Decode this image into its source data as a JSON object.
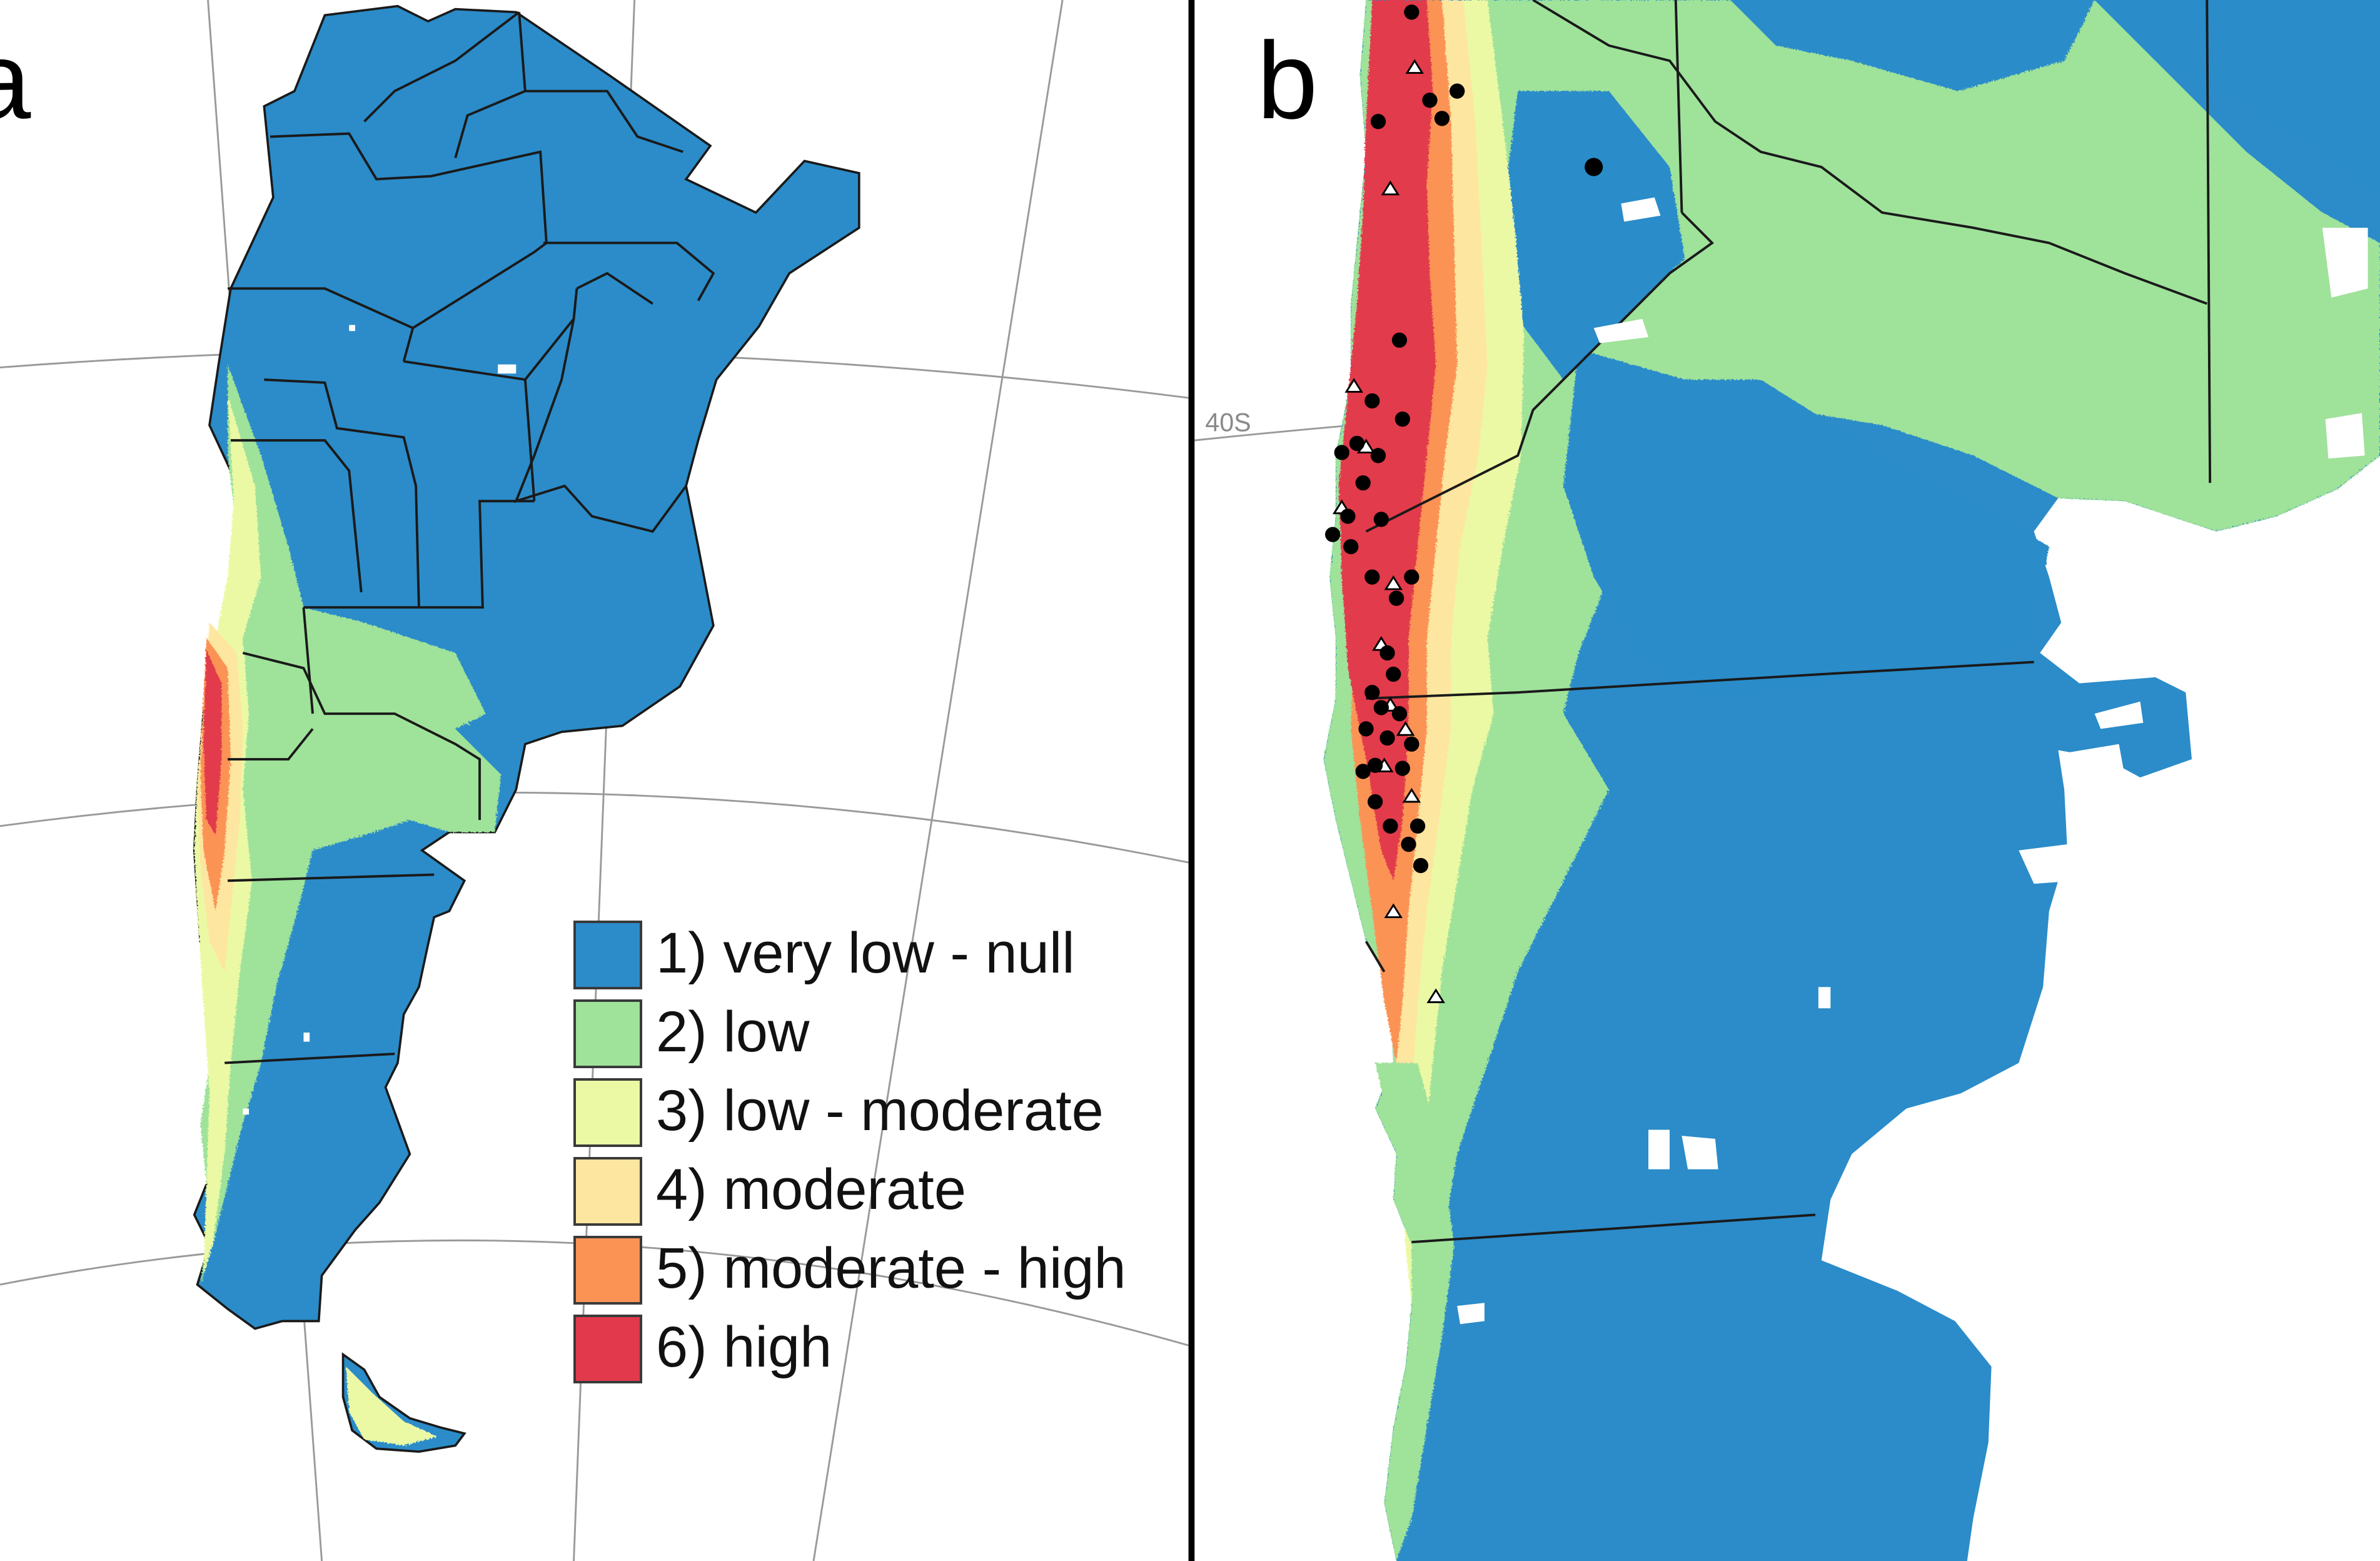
{
  "panels": [
    {
      "letter": "a"
    },
    {
      "letter": "b"
    }
  ],
  "graticule_label": "40S",
  "legend": [
    {
      "label": "1) very low - null",
      "color": "#2b8cc9"
    },
    {
      "label": "2) low",
      "color": "#9fe29a"
    },
    {
      "label": "3) low - moderate",
      "color": "#ebf9a5"
    },
    {
      "label": "4) moderate",
      "color": "#fde6a0"
    },
    {
      "label": "5) moderate - high",
      "color": "#fb9355"
    },
    {
      "label": "6) high",
      "color": "#e23a4c"
    }
  ],
  "markers": {
    "occurrence": "black-dot",
    "record": "white-triangle"
  }
}
